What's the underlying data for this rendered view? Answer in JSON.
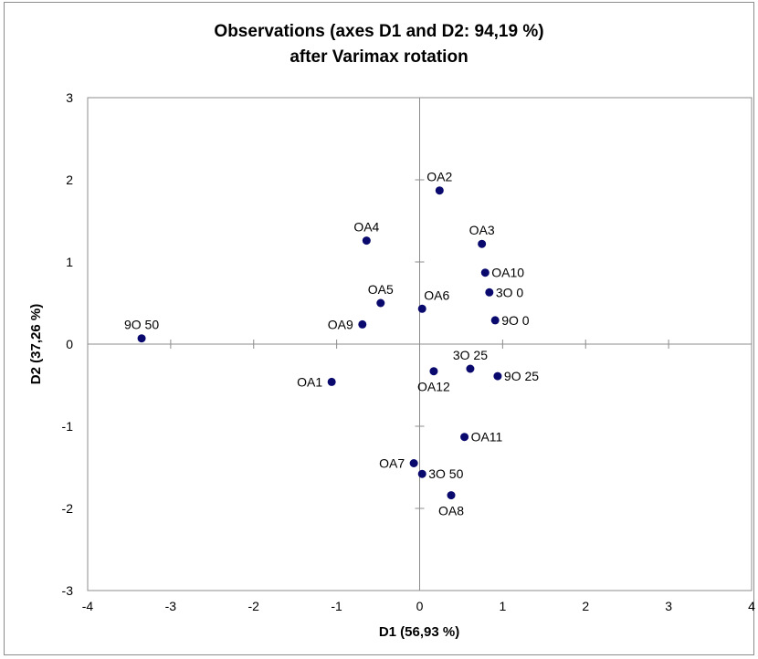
{
  "chart_data": {
    "type": "scatter",
    "title": "Observations (axes D1 and D2: 94,19 %)",
    "subtitle": "after Varimax rotation",
    "xlabel": "D1 (56,93 %)",
    "ylabel": "D2 (37,26 %)",
    "xlim": [
      -4,
      4
    ],
    "ylim": [
      -3,
      3
    ],
    "xticks": [
      -4,
      -3,
      -2,
      -1,
      0,
      1,
      2,
      3,
      4
    ],
    "yticks": [
      -3,
      -2,
      -1,
      0,
      1,
      2,
      3
    ],
    "grid": false,
    "point_color": "#0a0a6e",
    "points": [
      {
        "label": "OA2",
        "x": 0.24,
        "y": 1.87,
        "label_pos": "above"
      },
      {
        "label": "OA4",
        "x": -0.64,
        "y": 1.26,
        "label_pos": "above"
      },
      {
        "label": "OA3",
        "x": 0.75,
        "y": 1.22,
        "label_pos": "above"
      },
      {
        "label": "OA10",
        "x": 0.79,
        "y": 0.87,
        "label_pos": "right"
      },
      {
        "label": "3O 0",
        "x": 0.84,
        "y": 0.63,
        "label_pos": "right"
      },
      {
        "label": "OA5",
        "x": -0.47,
        "y": 0.5,
        "label_pos": "above"
      },
      {
        "label": "OA6",
        "x": 0.03,
        "y": 0.43,
        "label_pos": "above-right"
      },
      {
        "label": "9O 0",
        "x": 0.91,
        "y": 0.29,
        "label_pos": "right"
      },
      {
        "label": "OA9",
        "x": -0.69,
        "y": 0.24,
        "label_pos": "left"
      },
      {
        "label": "9O 50",
        "x": -3.35,
        "y": 0.07,
        "label_pos": "above"
      },
      {
        "label": "3O 25",
        "x": 0.61,
        "y": -0.3,
        "label_pos": "above"
      },
      {
        "label": "OA12",
        "x": 0.17,
        "y": -0.33,
        "label_pos": "below"
      },
      {
        "label": "9O 25",
        "x": 0.94,
        "y": -0.39,
        "label_pos": "right"
      },
      {
        "label": "OA1",
        "x": -1.06,
        "y": -0.46,
        "label_pos": "left"
      },
      {
        "label": "OA11",
        "x": 0.54,
        "y": -1.13,
        "label_pos": "right"
      },
      {
        "label": "OA7",
        "x": -0.07,
        "y": -1.45,
        "label_pos": "left"
      },
      {
        "label": "3O 50",
        "x": 0.03,
        "y": -1.58,
        "label_pos": "right"
      },
      {
        "label": "OA8",
        "x": 0.38,
        "y": -1.84,
        "label_pos": "below"
      }
    ]
  }
}
